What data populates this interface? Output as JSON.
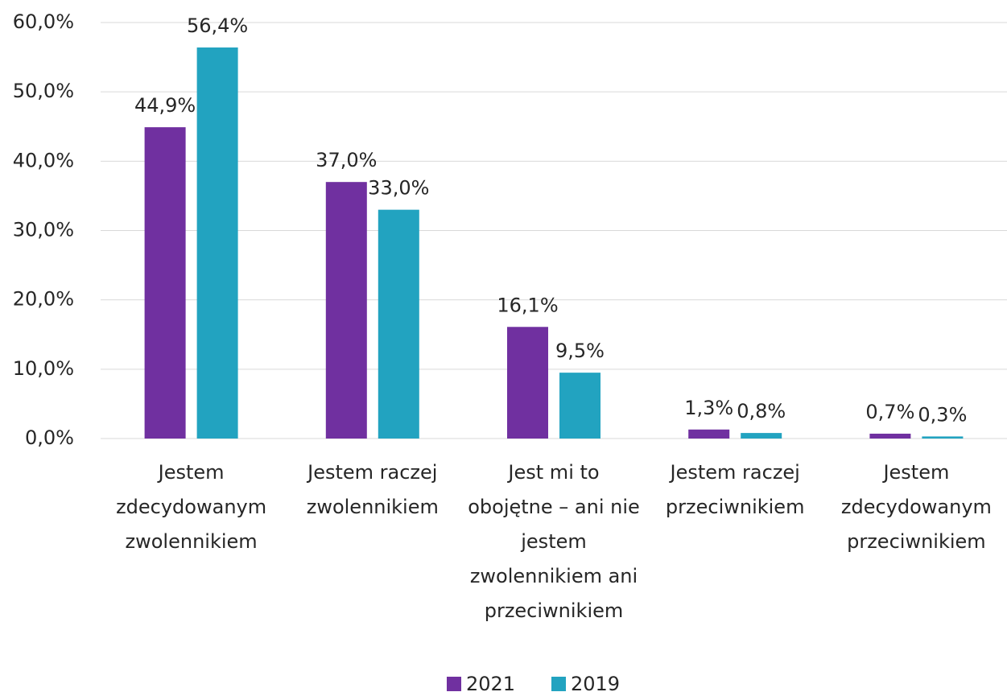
{
  "chart_data": {
    "type": "bar",
    "categories": [
      "Jestem zdecydowanym zwolennikiem",
      "Jestem raczej zwolennikiem",
      "Jest mi to obojętne – ani nie jestem zwolennikiem ani przeciwnikiem",
      "Jestem raczej przeciwnikiem",
      "Jestem zdecydowanym przeciwnikiem"
    ],
    "series": [
      {
        "name": "2021",
        "color": "#7030a0",
        "values": [
          44.9,
          37.0,
          16.1,
          1.3,
          0.7
        ],
        "value_labels": [
          "44,9%",
          "37,0%",
          "16,1%",
          "1,3%",
          "0,7%"
        ]
      },
      {
        "name": "2019",
        "color": "#22a3c0",
        "values": [
          56.4,
          33.0,
          9.5,
          0.8,
          0.3
        ],
        "value_labels": [
          "56,4%",
          "33,0%",
          "9,5%",
          "0,8%",
          "0,3%"
        ]
      }
    ],
    "ylim": [
      0,
      60
    ],
    "yticks": [
      {
        "value": 0,
        "label": "0,0%"
      },
      {
        "value": 10,
        "label": "10,0%"
      },
      {
        "value": 20,
        "label": "20,0%"
      },
      {
        "value": 30,
        "label": "30,0%"
      },
      {
        "value": 40,
        "label": "40,0%"
      },
      {
        "value": 50,
        "label": "50,0%"
      },
      {
        "value": 60,
        "label": "60,0%"
      }
    ],
    "grid": true,
    "legend": "bottom"
  }
}
